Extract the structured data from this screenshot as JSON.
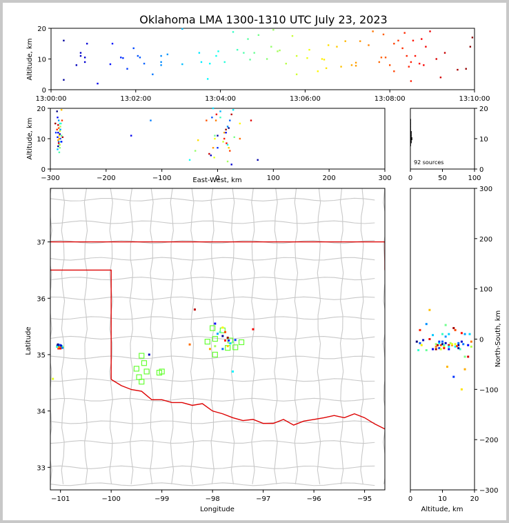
{
  "title": "Oklahoma LMA 1300-1310 UTC July 23, 2023",
  "colors": {
    "background": "#c8c8c8",
    "state_border": "#dd0000",
    "county_border": "#c8c8c8",
    "station_marker": "#66ff33"
  },
  "chart_data": [
    {
      "panel": "altitude-vs-time",
      "type": "scatter",
      "ylabel": "Altitude, km",
      "xticks": [
        "13:00:00",
        "13:02:00",
        "13:04:00",
        "13:06:00",
        "13:08:00",
        "13:10:00"
      ],
      "xlim_minutes": [
        0,
        10
      ],
      "ylim": [
        0,
        20
      ],
      "yticks": [
        "0",
        "10",
        "20"
      ],
      "color_by": "time",
      "points": [
        [
          0.3,
          16
        ],
        [
          0.3,
          3.2
        ],
        [
          0.6,
          8
        ],
        [
          0.7,
          11
        ],
        [
          0.7,
          12
        ],
        [
          0.8,
          9
        ],
        [
          0.8,
          10.5
        ],
        [
          0.85,
          15
        ],
        [
          1.1,
          2
        ],
        [
          1.4,
          8.3
        ],
        [
          1.45,
          15
        ],
        [
          1.65,
          10.5
        ],
        [
          1.7,
          10.3
        ],
        [
          1.8,
          6.8
        ],
        [
          1.95,
          13.5
        ],
        [
          2.05,
          11
        ],
        [
          2.2,
          8.5
        ],
        [
          2.4,
          5
        ],
        [
          2.6,
          11
        ],
        [
          2.6,
          9
        ],
        [
          2.6,
          8
        ],
        [
          2.75,
          11.5
        ],
        [
          3.1,
          19.8
        ],
        [
          3.1,
          8.3
        ],
        [
          3.5,
          12
        ],
        [
          3.55,
          9
        ],
        [
          3.7,
          3.5
        ],
        [
          3.75,
          8.5
        ],
        [
          3.9,
          11
        ],
        [
          3.95,
          12.5
        ],
        [
          4.3,
          18.8
        ],
        [
          4.4,
          13
        ],
        [
          4.55,
          12
        ],
        [
          4.65,
          16.5
        ],
        [
          4.7,
          9.8
        ],
        [
          4.8,
          12
        ],
        [
          4.9,
          17.8
        ],
        [
          5.1,
          10
        ],
        [
          5.2,
          14
        ],
        [
          5.25,
          19.5
        ],
        [
          5.35,
          12.5
        ],
        [
          5.4,
          12.8
        ],
        [
          5.7,
          17.5
        ],
        [
          5.8,
          11
        ],
        [
          5.8,
          5
        ],
        [
          6.05,
          10.3
        ],
        [
          6.1,
          13
        ],
        [
          6.3,
          6
        ],
        [
          6.45,
          9.8
        ],
        [
          6.5,
          7
        ],
        [
          6.55,
          14.5
        ],
        [
          6.75,
          14
        ],
        [
          6.85,
          7.5
        ],
        [
          6.95,
          15.8
        ],
        [
          7.1,
          8
        ],
        [
          7.2,
          7.8
        ],
        [
          7.2,
          8.8
        ],
        [
          7.3,
          15.8
        ],
        [
          7.5,
          14.5
        ],
        [
          7.6,
          19
        ],
        [
          7.75,
          9
        ],
        [
          7.8,
          10.5
        ],
        [
          7.9,
          10.5
        ],
        [
          8.0,
          8
        ],
        [
          8.1,
          15
        ],
        [
          8.1,
          6
        ],
        [
          8.2,
          16
        ],
        [
          8.3,
          13.5
        ],
        [
          8.35,
          18.5
        ],
        [
          8.4,
          11
        ],
        [
          8.5,
          9
        ],
        [
          8.5,
          2.8
        ],
        [
          8.6,
          11
        ],
        [
          8.75,
          16.5
        ],
        [
          8.8,
          8
        ],
        [
          8.85,
          14
        ],
        [
          8.95,
          19
        ],
        [
          9.1,
          10
        ],
        [
          9.2,
          4
        ],
        [
          9.6,
          6.5
        ],
        [
          9.8,
          6.8
        ],
        [
          9.9,
          14
        ],
        [
          9.95,
          17
        ],
        [
          8.45,
          7.5
        ],
        [
          8.7,
          8.5
        ],
        [
          8.55,
          16
        ],
        [
          2.1,
          10.5
        ],
        [
          4.1,
          9
        ],
        [
          6.4,
          10
        ],
        [
          7.85,
          18
        ],
        [
          9.3,
          12
        ],
        [
          5.55,
          8.5
        ]
      ]
    },
    {
      "panel": "altitude-vs-eastwest",
      "type": "scatter",
      "ylabel": "Altitude, km",
      "xlabel": "East-West, km",
      "xlim": [
        -300,
        300
      ],
      "xticks": [
        "−300",
        "−200",
        "−100",
        "0",
        "100",
        "200",
        "300"
      ],
      "ylim": [
        0,
        20
      ],
      "yticks": [
        "0",
        "10",
        "20"
      ],
      "points": [
        [
          -288,
          19
        ],
        [
          -287,
          17
        ],
        [
          -285,
          16
        ],
        [
          -283,
          15
        ],
        [
          -282,
          14
        ],
        [
          -280,
          19.5
        ],
        [
          -279,
          16
        ],
        [
          -278,
          10.5
        ],
        [
          -286,
          12
        ],
        [
          -285,
          9
        ],
        [
          -284,
          8
        ],
        [
          -283,
          7
        ],
        [
          -284,
          11
        ],
        [
          -285,
          13.5
        ],
        [
          -286,
          14.5
        ],
        [
          -283,
          11.5
        ],
        [
          -282,
          10
        ],
        [
          -281,
          9
        ],
        [
          -280,
          11
        ],
        [
          -283,
          12.5
        ],
        [
          -284,
          10
        ],
        [
          -285,
          8.5
        ],
        [
          -286,
          7.5
        ],
        [
          -287,
          10.5
        ],
        [
          -282,
          13
        ],
        [
          -281,
          15
        ],
        [
          -283,
          8
        ],
        [
          -286,
          9.5
        ],
        [
          -288,
          13
        ],
        [
          -291,
          15
        ],
        [
          -155,
          11
        ],
        [
          -120,
          16
        ],
        [
          -50,
          3
        ],
        [
          -40,
          6
        ],
        [
          -35,
          9.5
        ],
        [
          -20,
          16
        ],
        [
          -15,
          5
        ],
        [
          -12,
          4.5
        ],
        [
          -10,
          17
        ],
        [
          -8,
          20
        ],
        [
          -5,
          11
        ],
        [
          -5,
          10
        ],
        [
          -3,
          16
        ],
        [
          -2,
          18
        ],
        [
          0,
          11
        ],
        [
          0,
          7
        ],
        [
          5,
          19
        ],
        [
          5,
          17
        ],
        [
          10,
          9
        ],
        [
          12,
          12
        ],
        [
          12,
          10
        ],
        [
          15,
          13
        ],
        [
          15,
          12
        ],
        [
          18,
          14
        ],
        [
          18,
          8
        ],
        [
          18,
          2.5
        ],
        [
          20,
          7
        ],
        [
          22,
          6
        ],
        [
          25,
          18
        ],
        [
          25,
          1.5
        ],
        [
          22,
          16
        ],
        [
          28,
          19.5
        ],
        [
          30,
          10.5
        ],
        [
          40,
          15
        ],
        [
          40,
          10
        ],
        [
          60,
          16
        ],
        [
          72,
          3
        ],
        [
          -290,
          12
        ],
        [
          -287,
          6.5
        ],
        [
          -284,
          5.5
        ],
        [
          -6,
          3.8
        ],
        [
          -8,
          7
        ],
        [
          16,
          8.5
        ],
        [
          20,
          13.5
        ],
        [
          -280,
          9
        ]
      ]
    },
    {
      "panel": "altitude-histogram",
      "type": "bar",
      "xlim": [
        0,
        100
      ],
      "xticks": [
        "0",
        "50",
        "100"
      ],
      "ylim": [
        0,
        20
      ],
      "yticks": [
        "0",
        "10",
        "20"
      ],
      "annotation": "92 sources",
      "values": [
        [
          8,
          1
        ],
        [
          9,
          2
        ],
        [
          10,
          3
        ],
        [
          11,
          2
        ],
        [
          12,
          2
        ],
        [
          13,
          1
        ],
        [
          14,
          1
        ],
        [
          15,
          1
        ],
        [
          16,
          1
        ]
      ]
    },
    {
      "panel": "plan-view",
      "type": "scatter",
      "xlabel": "Longitude",
      "ylabel": "Latitude",
      "xlim": [
        -101.2,
        -94.6
      ],
      "ylim": [
        32.6,
        37.95
      ],
      "xticks": [
        "−101",
        "−100",
        "−99",
        "−98",
        "−97",
        "−96",
        "−95"
      ],
      "yticks": [
        "33",
        "34",
        "35",
        "36",
        "37"
      ],
      "stations": [
        [
          -98.0,
          35.47
        ],
        [
          -98.1,
          35.23
        ],
        [
          -97.95,
          35.28
        ],
        [
          -97.8,
          35.43
        ],
        [
          -97.65,
          35.25
        ],
        [
          -97.55,
          35.13
        ],
        [
          -97.43,
          35.22
        ],
        [
          -97.7,
          35.12
        ],
        [
          -97.95,
          35.0
        ],
        [
          -99.4,
          34.98
        ],
        [
          -99.35,
          34.85
        ],
        [
          -99.3,
          34.7
        ],
        [
          -99.45,
          34.6
        ],
        [
          -99.5,
          34.75
        ],
        [
          -99.4,
          34.52
        ],
        [
          -99.05,
          34.68
        ],
        [
          -99.0,
          34.7
        ]
      ],
      "points": [
        [
          -101.05,
          35.18
        ],
        [
          -101.03,
          35.15
        ],
        [
          -101.02,
          35.12
        ],
        [
          -101.0,
          35.14
        ],
        [
          -100.98,
          35.13
        ],
        [
          -101.04,
          35.11
        ],
        [
          -101.06,
          35.16
        ],
        [
          -101.01,
          35.17
        ],
        [
          -100.97,
          35.15
        ],
        [
          -100.95,
          35.13
        ],
        [
          -101.03,
          35.13
        ],
        [
          -101.0,
          35.11
        ],
        [
          -100.99,
          35.16
        ],
        [
          -100.96,
          35.12
        ],
        [
          -101.07,
          35.14
        ],
        [
          -101.15,
          34.57
        ],
        [
          -98.45,
          35.18
        ],
        [
          -98.35,
          35.8
        ],
        [
          -97.95,
          35.55
        ],
        [
          -97.9,
          35.37
        ],
        [
          -97.85,
          35.4
        ],
        [
          -97.8,
          35.48
        ],
        [
          -97.75,
          35.4
        ],
        [
          -97.7,
          35.3
        ],
        [
          -97.68,
          35.25
        ],
        [
          -97.65,
          35.2
        ],
        [
          -97.6,
          35.22
        ],
        [
          -97.7,
          35.15
        ],
        [
          -97.75,
          35.25
        ],
        [
          -97.8,
          35.33
        ],
        [
          -97.55,
          35.26
        ],
        [
          -97.6,
          34.7
        ],
        [
          -97.95,
          35.15
        ],
        [
          -98.05,
          35.1
        ],
        [
          -97.2,
          35.45
        ],
        [
          -99.25,
          35.0
        ],
        [
          -97.8,
          35.1
        ]
      ]
    },
    {
      "panel": "altitude-vs-northsouth",
      "type": "scatter",
      "xlabel": "Altitude, km",
      "ylabel": "North-South, km",
      "xlim": [
        0,
        20
      ],
      "xticks": [
        "0",
        "10",
        "20"
      ],
      "ylim": [
        -300,
        300
      ],
      "yticks": [
        "−300",
        "−200",
        "−100",
        "0",
        "100",
        "200",
        "300"
      ],
      "points": [
        [
          2,
          -5
        ],
        [
          3,
          -8
        ],
        [
          2.5,
          -22
        ],
        [
          3.5,
          -12
        ],
        [
          3,
          18
        ],
        [
          4,
          -2
        ],
        [
          5,
          30
        ],
        [
          5,
          -22
        ],
        [
          6,
          58
        ],
        [
          6,
          0
        ],
        [
          7,
          -20
        ],
        [
          7,
          8
        ],
        [
          8,
          -10
        ],
        [
          8,
          -15
        ],
        [
          8.5,
          -12
        ],
        [
          9,
          -18
        ],
        [
          9,
          -8
        ],
        [
          9.5,
          -20
        ],
        [
          9.5,
          -12
        ],
        [
          10,
          -10
        ],
        [
          10,
          -5
        ],
        [
          10,
          10
        ],
        [
          10.5,
          -15
        ],
        [
          10.5,
          -18
        ],
        [
          11,
          -8
        ],
        [
          11,
          5
        ],
        [
          11,
          28
        ],
        [
          11.5,
          -55
        ],
        [
          12,
          -12
        ],
        [
          12,
          -20
        ],
        [
          12,
          10
        ],
        [
          12.5,
          -8
        ],
        [
          13,
          -12
        ],
        [
          13.5,
          22
        ],
        [
          13.5,
          -75
        ],
        [
          14,
          -15
        ],
        [
          14,
          -10
        ],
        [
          14,
          18
        ],
        [
          15,
          -12
        ],
        [
          15,
          -8
        ],
        [
          15.5,
          -20
        ],
        [
          16,
          -100
        ],
        [
          16,
          12
        ],
        [
          16,
          -5
        ],
        [
          17,
          10
        ],
        [
          17,
          -35
        ],
        [
          17,
          -60
        ],
        [
          18,
          -35
        ],
        [
          18,
          -12
        ],
        [
          18.5,
          10
        ],
        [
          19,
          -15
        ],
        [
          19,
          -5
        ],
        [
          8,
          -20
        ],
        [
          9,
          -5
        ],
        [
          12,
          -15
        ],
        [
          13,
          -10
        ],
        [
          14.5,
          -14
        ],
        [
          15,
          -18
        ],
        [
          16.5,
          -10
        ],
        [
          10.5,
          -12
        ]
      ]
    }
  ]
}
